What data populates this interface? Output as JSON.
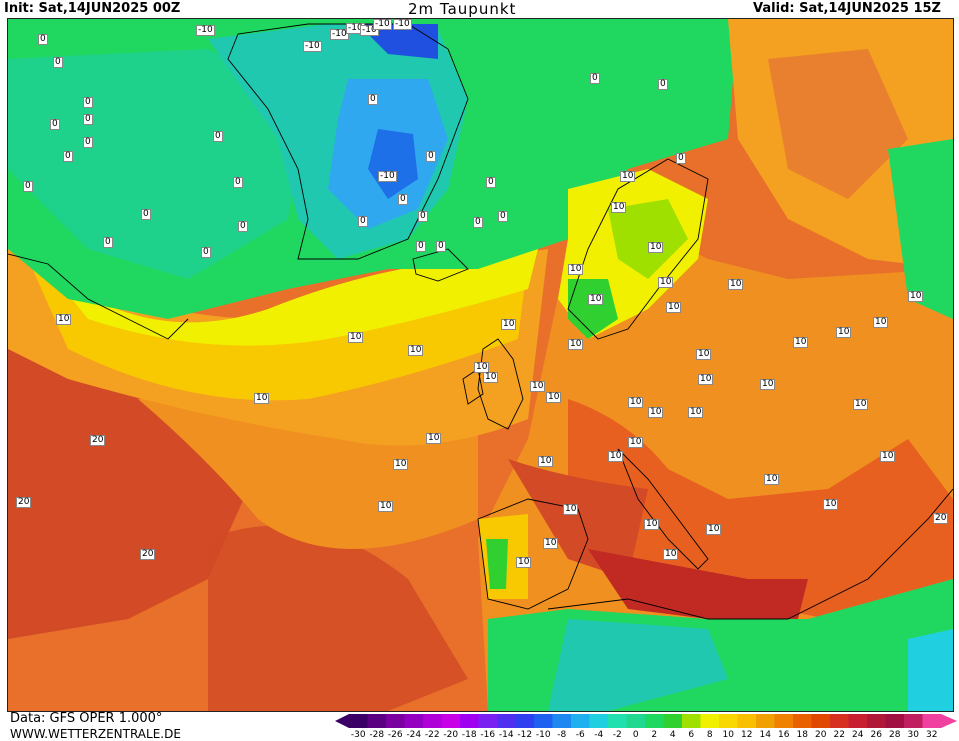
{
  "header": {
    "init": "Init: Sat,14JUN2025 00Z",
    "title": "2m Taupunkt",
    "valid": "Valid: Sat,14JUN2025 15Z"
  },
  "footer": {
    "source": "Data: GFS OPER 1.000°",
    "site": "WWW.WETTERZENTRALE.DE"
  },
  "colorbar": {
    "ticks": [
      "-30",
      "-28",
      "-26",
      "-24",
      "-22",
      "-20",
      "-18",
      "-16",
      "-14",
      "-12",
      "-10",
      "-8",
      "-6",
      "-4",
      "-2",
      "0",
      "2",
      "4",
      "6",
      "8",
      "10",
      "12",
      "14",
      "16",
      "18",
      "20",
      "22",
      "24",
      "26",
      "28",
      "30",
      "32"
    ],
    "colors": [
      "#3a0066",
      "#5a0080",
      "#7a00a0",
      "#9400c0",
      "#b000d8",
      "#c800e8",
      "#a000f0",
      "#7a20f0",
      "#5030f0",
      "#3040f0",
      "#2060f0",
      "#1e88f0",
      "#20b0f0",
      "#20d0e0",
      "#20e0b0",
      "#20d890",
      "#20d860",
      "#30d030",
      "#a0e000",
      "#f0f000",
      "#f8d800",
      "#f8c000",
      "#f0a000",
      "#f08000",
      "#e86000",
      "#e04800",
      "#d83020",
      "#c82030",
      "#b01838",
      "#a01040",
      "#c02060",
      "#f040a0"
    ]
  },
  "contour_labels": [
    "-10",
    "-10",
    "-10",
    "-10",
    "-10",
    "-10",
    "-10",
    "-10",
    "0",
    "0",
    "0",
    "0",
    "0",
    "0",
    "0",
    "0",
    "0",
    "0",
    "0",
    "0",
    "0",
    "0",
    "0",
    "0",
    "0",
    "0",
    "0",
    "0",
    "0",
    "0",
    "0",
    "0",
    "0",
    "0",
    "0",
    "10",
    "10",
    "10",
    "10",
    "10",
    "10",
    "10",
    "10",
    "10",
    "10",
    "10",
    "10",
    "10",
    "10",
    "10",
    "10",
    "10",
    "10",
    "10",
    "10",
    "10",
    "10",
    "10",
    "10",
    "10",
    "10",
    "10",
    "10",
    "10",
    "10",
    "10",
    "10",
    "10",
    "10",
    "10",
    "10",
    "10",
    "10",
    "10",
    "10",
    "10",
    "10",
    "10",
    "10",
    "20",
    "20",
    "20",
    "20"
  ],
  "colors": {
    "ocean_warm": "#e8702a",
    "hot": "#d24a26",
    "moderate": "#f4a020",
    "mild": "#f8c800",
    "cool": "#f0f000",
    "green": "#20d860",
    "teal": "#20d0a0",
    "cold": "#30a8f0"
  }
}
